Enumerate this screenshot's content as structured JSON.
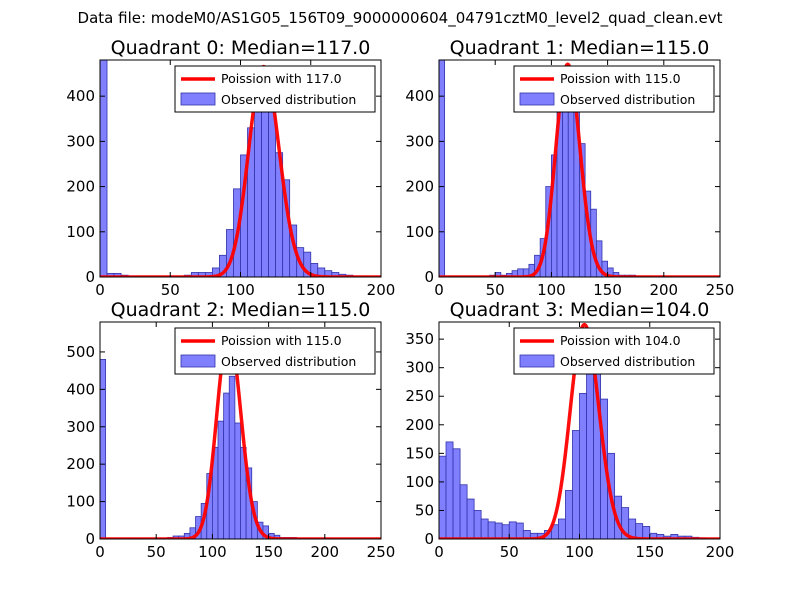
{
  "suptitle": "Data file: modeM0/AS1G05_156T09_9000000604_04791cztM0_level2_quad_clean.evt",
  "colors": {
    "bar_fill": "#8080ff",
    "bar_edge": "#3333aa",
    "fit_line": "#ff0000",
    "axes": "#000000",
    "legend_edge": "#000000"
  },
  "chart_data": [
    {
      "type": "bar",
      "title": "Quadrant 0: Median=117.0",
      "legend_location": "upper right",
      "legend": {
        "fit_label": "Poission with 117.0",
        "hist_label": "Observed distribution"
      },
      "xlim": [
        0,
        200
      ],
      "ylim": [
        0,
        480
      ],
      "xticks": [
        0,
        50,
        100,
        150,
        200
      ],
      "yticks": [
        0,
        100,
        200,
        300,
        400
      ],
      "bin_width": 5,
      "bin_starts": [
        0,
        5,
        10,
        15,
        20,
        25,
        30,
        35,
        40,
        45,
        50,
        55,
        60,
        65,
        70,
        75,
        80,
        85,
        90,
        95,
        100,
        105,
        110,
        115,
        120,
        125,
        130,
        135,
        140,
        145,
        150,
        155,
        160,
        165,
        170,
        175,
        180,
        185,
        190,
        195
      ],
      "counts": [
        480,
        8,
        8,
        4,
        2,
        2,
        2,
        2,
        2,
        2,
        2,
        2,
        4,
        10,
        10,
        10,
        20,
        48,
        105,
        195,
        270,
        330,
        420,
        415,
        365,
        275,
        215,
        115,
        65,
        55,
        30,
        20,
        14,
        10,
        6,
        4,
        2,
        2,
        2,
        1
      ],
      "fit": {
        "mean": 117.0,
        "amplitude": 465
      }
    },
    {
      "type": "bar",
      "title": "Quadrant 1: Median=115.0",
      "legend_location": "upper right",
      "legend": {
        "fit_label": "Poission with 115.0",
        "hist_label": "Observed distribution"
      },
      "xlim": [
        0,
        250
      ],
      "ylim": [
        0,
        480
      ],
      "xticks": [
        0,
        50,
        100,
        150,
        200,
        250
      ],
      "yticks": [
        0,
        100,
        200,
        300,
        400
      ],
      "bin_width": 5,
      "bin_starts": [
        0,
        5,
        10,
        15,
        20,
        25,
        30,
        35,
        40,
        45,
        50,
        55,
        60,
        65,
        70,
        75,
        80,
        85,
        90,
        95,
        100,
        105,
        110,
        115,
        120,
        125,
        130,
        135,
        140,
        145,
        150,
        155,
        160,
        165,
        170,
        175,
        180,
        185,
        190,
        195,
        200
      ],
      "counts": [
        480,
        2,
        2,
        2,
        2,
        2,
        2,
        2,
        2,
        4,
        10,
        4,
        8,
        14,
        18,
        18,
        28,
        48,
        85,
        200,
        270,
        390,
        400,
        425,
        390,
        295,
        190,
        150,
        80,
        35,
        20,
        10,
        4,
        4,
        4,
        2,
        2,
        2,
        1,
        2,
        1
      ],
      "fit": {
        "mean": 115.0,
        "amplitude": 470
      }
    },
    {
      "type": "bar",
      "title": "Quadrant 2: Median=115.0",
      "legend_location": "upper right",
      "legend": {
        "fit_label": "Poission with 115.0",
        "hist_label": "Observed distribution"
      },
      "xlim": [
        0,
        250
      ],
      "ylim": [
        0,
        580
      ],
      "xticks": [
        0,
        50,
        100,
        150,
        200,
        250
      ],
      "yticks": [
        0,
        100,
        200,
        300,
        400,
        500
      ],
      "bin_width": 5,
      "bin_starts": [
        0,
        5,
        10,
        15,
        20,
        25,
        30,
        35,
        40,
        45,
        50,
        55,
        60,
        65,
        70,
        75,
        80,
        85,
        90,
        95,
        100,
        105,
        110,
        115,
        120,
        125,
        130,
        135,
        140,
        145,
        150,
        155,
        160,
        165,
        170,
        175,
        180,
        185,
        190,
        195,
        200
      ],
      "counts": [
        480,
        2,
        2,
        2,
        2,
        2,
        2,
        2,
        2,
        2,
        2,
        2,
        4,
        8,
        8,
        15,
        30,
        60,
        95,
        175,
        245,
        315,
        390,
        435,
        310,
        245,
        190,
        100,
        45,
        35,
        15,
        10,
        4,
        4,
        4,
        2,
        2,
        2,
        2,
        1,
        2
      ],
      "fit": {
        "mean": 115.0,
        "amplitude": 550
      }
    },
    {
      "type": "bar",
      "title": "Quadrant 3: Median=104.0",
      "legend_location": "upper right",
      "legend": {
        "fit_label": "Poission with 104.0",
        "hist_label": "Observed distribution"
      },
      "xlim": [
        0,
        200
      ],
      "ylim": [
        0,
        380
      ],
      "xticks": [
        0,
        50,
        100,
        150,
        200
      ],
      "yticks": [
        0,
        50,
        100,
        150,
        200,
        250,
        300,
        350
      ],
      "bin_width": 5,
      "bin_starts": [
        0,
        5,
        10,
        15,
        20,
        25,
        30,
        35,
        40,
        45,
        50,
        55,
        60,
        65,
        70,
        75,
        80,
        85,
        90,
        95,
        100,
        105,
        110,
        115,
        120,
        125,
        130,
        135,
        140,
        145,
        150,
        155,
        160,
        165,
        170,
        175,
        180,
        185
      ],
      "counts": [
        145,
        170,
        158,
        95,
        70,
        50,
        35,
        30,
        28,
        25,
        30,
        28,
        15,
        10,
        10,
        15,
        25,
        35,
        85,
        190,
        255,
        345,
        310,
        245,
        150,
        75,
        55,
        35,
        27,
        22,
        10,
        8,
        5,
        8,
        5,
        5,
        3,
        2
      ],
      "fit": {
        "mean": 104.0,
        "amplitude": 375
      }
    }
  ]
}
